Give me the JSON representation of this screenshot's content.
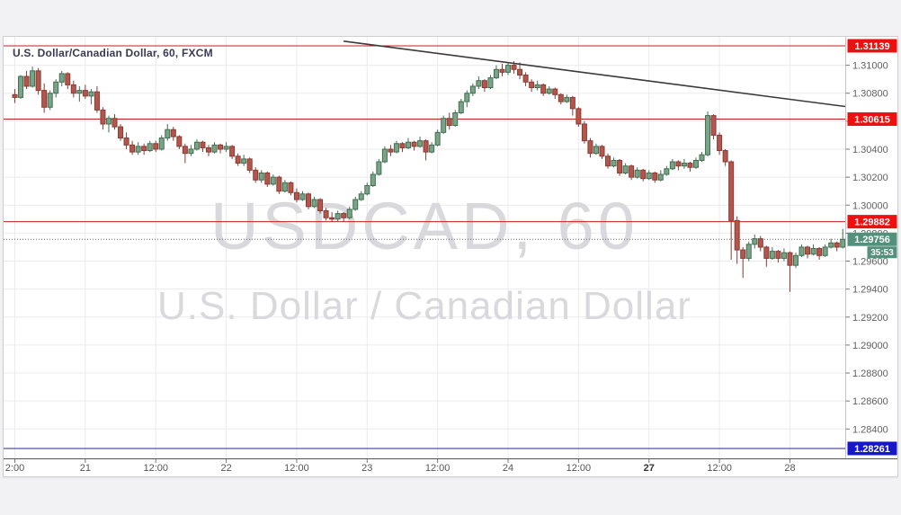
{
  "header": {
    "title": "U.S. Dollar/Canadian Dollar, 60, FXCM"
  },
  "watermark": {
    "line1": "USDCAD, 60",
    "line2": "U.S. Dollar / Canadian Dollar"
  },
  "colors": {
    "up_fill": "#7ba388",
    "up_border": "#3f6e50",
    "down_fill": "#b2564e",
    "down_border": "#8a3a33",
    "grid": "#ebebee",
    "frame_dark": "#555555",
    "frame_light": "#c4c4c4",
    "tick": "#777777",
    "level_red": "#c21f1f",
    "level_blue": "#26268a",
    "badge_red": "#ee0f0f",
    "badge_blue": "#1717c9",
    "badge_green": "#53917c",
    "trendline": "#3a3a3a",
    "last_price_line": "#666666",
    "watermark": "#d9d9dd",
    "title_text": "#3a3a57",
    "axis_text": "#5f5f5f"
  },
  "chart_data": {
    "type": "candlestick",
    "title": "U.S. Dollar/Canadian Dollar, 60, FXCM",
    "symbol": "USDCAD",
    "interval": "60",
    "exchange": "FXCM",
    "y_axis": {
      "min": 1.2819,
      "max": 1.31203,
      "grid_min": 1.284,
      "grid_max": 1.31,
      "grid_step": 0.002,
      "label_decimals": 5,
      "grid": true
    },
    "x_ticks": [
      {
        "index": 0,
        "label": "2:00",
        "bold": false
      },
      {
        "index": 12,
        "label": "21",
        "bold": false
      },
      {
        "index": 24,
        "label": "12:00",
        "bold": false
      },
      {
        "index": 36,
        "label": "22",
        "bold": false
      },
      {
        "index": 48,
        "label": "12:00",
        "bold": false
      },
      {
        "index": 60,
        "label": "23",
        "bold": false
      },
      {
        "index": 72,
        "label": "12:00",
        "bold": false
      },
      {
        "index": 84,
        "label": "24",
        "bold": false
      },
      {
        "index": 96,
        "label": "12:00",
        "bold": false
      },
      {
        "index": 108,
        "label": "27",
        "bold": true
      },
      {
        "index": 120,
        "label": "12:00",
        "bold": false
      },
      {
        "index": 132,
        "label": "28",
        "bold": false
      }
    ],
    "levels": [
      {
        "price": 1.31139,
        "label": "1.31139",
        "style": "red"
      },
      {
        "price": 1.30615,
        "label": "1.30615",
        "style": "red"
      },
      {
        "price": 1.29882,
        "label": "1.29882",
        "style": "red"
      },
      {
        "price": 1.28261,
        "label": "1.28261",
        "style": "blue"
      }
    ],
    "last": {
      "price": 1.29756,
      "label": "1.29756",
      "countdown": "35:53"
    },
    "trendline": {
      "from_index": 56,
      "from_price": 1.31172,
      "to_index": 142,
      "to_price": 1.30705
    },
    "candles": [
      [
        1.3079,
        1.3083,
        1.3073,
        1.3077
      ],
      [
        1.3077,
        1.3093,
        1.3076,
        1.3092
      ],
      [
        1.3092,
        1.3096,
        1.3083,
        1.3085
      ],
      [
        1.3085,
        1.3099,
        1.3084,
        1.3096
      ],
      [
        1.3096,
        1.3098,
        1.3079,
        1.3082
      ],
      [
        1.3082,
        1.3087,
        1.3066,
        1.307
      ],
      [
        1.307,
        1.3082,
        1.3068,
        1.308
      ],
      [
        1.308,
        1.309,
        1.3077,
        1.3088
      ],
      [
        1.3088,
        1.3096,
        1.3085,
        1.3094
      ],
      [
        1.3094,
        1.3095,
        1.3083,
        1.3086
      ],
      [
        1.3086,
        1.3089,
        1.3077,
        1.308
      ],
      [
        1.308,
        1.3085,
        1.3074,
        1.3082
      ],
      [
        1.3082,
        1.3086,
        1.3076,
        1.3078
      ],
      [
        1.3078,
        1.3083,
        1.3072,
        1.3081
      ],
      [
        1.3081,
        1.3085,
        1.3066,
        1.3068
      ],
      [
        1.3068,
        1.307,
        1.3054,
        1.3058
      ],
      [
        1.3058,
        1.3064,
        1.3052,
        1.3062
      ],
      [
        1.3062,
        1.3065,
        1.3054,
        1.3056
      ],
      [
        1.3056,
        1.3058,
        1.3046,
        1.3048
      ],
      [
        1.3048,
        1.3052,
        1.304,
        1.3043
      ],
      [
        1.3043,
        1.3046,
        1.3036,
        1.3038
      ],
      [
        1.3038,
        1.3045,
        1.3036,
        1.3042
      ],
      [
        1.3042,
        1.3044,
        1.3036,
        1.3039
      ],
      [
        1.3039,
        1.3046,
        1.3038,
        1.3044
      ],
      [
        1.3044,
        1.3046,
        1.3038,
        1.304
      ],
      [
        1.304,
        1.305,
        1.3039,
        1.3048
      ],
      [
        1.3048,
        1.3058,
        1.3046,
        1.3054
      ],
      [
        1.3054,
        1.3056,
        1.3046,
        1.3049
      ],
      [
        1.3049,
        1.305,
        1.304,
        1.3042
      ],
      [
        1.3042,
        1.3044,
        1.303,
        1.3037
      ],
      [
        1.3037,
        1.3043,
        1.3035,
        1.304
      ],
      [
        1.304,
        1.3047,
        1.3039,
        1.3045
      ],
      [
        1.3045,
        1.3046,
        1.3038,
        1.3041
      ],
      [
        1.3041,
        1.3043,
        1.3035,
        1.3038
      ],
      [
        1.3038,
        1.3045,
        1.3037,
        1.3043
      ],
      [
        1.3043,
        1.3044,
        1.3037,
        1.304
      ],
      [
        1.304,
        1.3045,
        1.3038,
        1.3042
      ],
      [
        1.3042,
        1.3043,
        1.3033,
        1.3035
      ],
      [
        1.3035,
        1.3037,
        1.3028,
        1.303
      ],
      [
        1.303,
        1.3036,
        1.3028,
        1.3033
      ],
      [
        1.3033,
        1.3034,
        1.3023,
        1.3025
      ],
      [
        1.3025,
        1.3027,
        1.3016,
        1.3018
      ],
      [
        1.3018,
        1.3025,
        1.3016,
        1.3023
      ],
      [
        1.3023,
        1.3024,
        1.3013,
        1.3015
      ],
      [
        1.3015,
        1.3022,
        1.3014,
        1.302
      ],
      [
        1.302,
        1.3021,
        1.3008,
        1.301
      ],
      [
        1.301,
        1.3018,
        1.3009,
        1.3016
      ],
      [
        1.3016,
        1.3017,
        1.3007,
        1.3009
      ],
      [
        1.3009,
        1.3012,
        1.3002,
        1.3004
      ],
      [
        1.3004,
        1.301,
        1.3003,
        1.3008
      ],
      [
        1.3008,
        1.3009,
        1.2997,
        1.2999
      ],
      [
        1.2999,
        1.3006,
        1.2998,
        1.3004
      ],
      [
        1.3004,
        1.3005,
        1.2994,
        1.2996
      ],
      [
        1.2996,
        1.2998,
        1.2989,
        1.2991
      ],
      [
        1.2991,
        1.2995,
        1.2988,
        1.299
      ],
      [
        1.299,
        1.2996,
        1.2988,
        1.2994
      ],
      [
        1.2994,
        1.2995,
        1.2988,
        1.2991
      ],
      [
        1.2991,
        1.2999,
        1.299,
        1.2997
      ],
      [
        1.2997,
        1.3006,
        1.2996,
        1.3004
      ],
      [
        1.3004,
        1.301,
        1.3003,
        1.3008
      ],
      [
        1.3008,
        1.3016,
        1.3007,
        1.3014
      ],
      [
        1.3014,
        1.3024,
        1.3013,
        1.3022
      ],
      [
        1.3022,
        1.3033,
        1.3021,
        1.3031
      ],
      [
        1.3031,
        1.3042,
        1.303,
        1.304
      ],
      [
        1.304,
        1.3043,
        1.3035,
        1.3038
      ],
      [
        1.3038,
        1.3046,
        1.3037,
        1.3044
      ],
      [
        1.3044,
        1.3045,
        1.3038,
        1.3041
      ],
      [
        1.3041,
        1.3048,
        1.304,
        1.3045
      ],
      [
        1.3045,
        1.3046,
        1.3039,
        1.3042
      ],
      [
        1.3042,
        1.3049,
        1.3041,
        1.3046
      ],
      [
        1.3046,
        1.3047,
        1.3032,
        1.3038
      ],
      [
        1.3038,
        1.3045,
        1.3037,
        1.3043
      ],
      [
        1.3043,
        1.3054,
        1.3042,
        1.3052
      ],
      [
        1.3052,
        1.3064,
        1.3051,
        1.3062
      ],
      [
        1.3062,
        1.3066,
        1.3054,
        1.3057
      ],
      [
        1.3057,
        1.3068,
        1.3056,
        1.3066
      ],
      [
        1.3066,
        1.3076,
        1.3065,
        1.3074
      ],
      [
        1.3074,
        1.3082,
        1.307,
        1.308
      ],
      [
        1.308,
        1.3087,
        1.3078,
        1.3085
      ],
      [
        1.3085,
        1.3092,
        1.3083,
        1.3089
      ],
      [
        1.3089,
        1.309,
        1.3081,
        1.3084
      ],
      [
        1.3084,
        1.3093,
        1.3083,
        1.3091
      ],
      [
        1.3091,
        1.31,
        1.309,
        1.3097
      ],
      [
        1.3097,
        1.3101,
        1.3092,
        1.3095
      ],
      [
        1.3095,
        1.3102,
        1.3093,
        1.31
      ],
      [
        1.31,
        1.3103,
        1.3094,
        1.3097
      ],
      [
        1.3097,
        1.3102,
        1.309,
        1.3093
      ],
      [
        1.3093,
        1.3095,
        1.3085,
        1.3088
      ],
      [
        1.3088,
        1.309,
        1.3081,
        1.3084
      ],
      [
        1.3084,
        1.3089,
        1.3082,
        1.3086
      ],
      [
        1.3086,
        1.3087,
        1.3078,
        1.308
      ],
      [
        1.308,
        1.3085,
        1.3079,
        1.3083
      ],
      [
        1.3083,
        1.3084,
        1.3076,
        1.3079
      ],
      [
        1.3079,
        1.308,
        1.3072,
        1.3074
      ],
      [
        1.3074,
        1.3079,
        1.3073,
        1.3077
      ],
      [
        1.3077,
        1.3078,
        1.3064,
        1.3069
      ],
      [
        1.3069,
        1.307,
        1.3056,
        1.3058
      ],
      [
        1.3058,
        1.306,
        1.3044,
        1.3046
      ],
      [
        1.3046,
        1.3048,
        1.3034,
        1.3037
      ],
      [
        1.3037,
        1.3044,
        1.3036,
        1.3042
      ],
      [
        1.3042,
        1.3043,
        1.3033,
        1.3035
      ],
      [
        1.3035,
        1.3037,
        1.3026,
        1.3028
      ],
      [
        1.3028,
        1.3034,
        1.3027,
        1.3032
      ],
      [
        1.3032,
        1.3033,
        1.3021,
        1.3023
      ],
      [
        1.3023,
        1.303,
        1.3022,
        1.3028
      ],
      [
        1.3028,
        1.3029,
        1.3018,
        1.302
      ],
      [
        1.302,
        1.3027,
        1.3019,
        1.3025
      ],
      [
        1.3025,
        1.3026,
        1.3017,
        1.3019
      ],
      [
        1.3019,
        1.3025,
        1.3018,
        1.3023
      ],
      [
        1.3023,
        1.3024,
        1.3016,
        1.3018
      ],
      [
        1.3018,
        1.3025,
        1.3017,
        1.3022
      ],
      [
        1.3022,
        1.3028,
        1.3021,
        1.3026
      ],
      [
        1.3026,
        1.3033,
        1.3025,
        1.3031
      ],
      [
        1.3031,
        1.3032,
        1.3025,
        1.3028
      ],
      [
        1.3028,
        1.3033,
        1.3026,
        1.303
      ],
      [
        1.303,
        1.3031,
        1.3024,
        1.3027
      ],
      [
        1.3027,
        1.3034,
        1.3026,
        1.3032
      ],
      [
        1.3032,
        1.3038,
        1.3031,
        1.3036
      ],
      [
        1.3036,
        1.3067,
        1.3035,
        1.3064
      ],
      [
        1.3064,
        1.3065,
        1.3047,
        1.305
      ],
      [
        1.305,
        1.3052,
        1.3036,
        1.3039
      ],
      [
        1.3039,
        1.304,
        1.3028,
        1.3031
      ],
      [
        1.3031,
        1.3032,
        1.2961,
        1.2989
      ],
      [
        1.2989,
        1.2992,
        1.2958,
        1.2968
      ],
      [
        1.2968,
        1.297,
        1.2948,
        1.2962
      ],
      [
        1.2962,
        1.2974,
        1.296,
        1.2972
      ],
      [
        1.2972,
        1.2979,
        1.2969,
        1.2976
      ],
      [
        1.2976,
        1.2978,
        1.2967,
        1.297
      ],
      [
        1.297,
        1.2971,
        1.2956,
        1.2962
      ],
      [
        1.2962,
        1.297,
        1.2961,
        1.2967
      ],
      [
        1.2967,
        1.2968,
        1.2959,
        1.2962
      ],
      [
        1.2962,
        1.2969,
        1.296,
        1.2966
      ],
      [
        1.2966,
        1.2967,
        1.2938,
        1.2957
      ],
      [
        1.2957,
        1.2966,
        1.2955,
        1.2964
      ],
      [
        1.2964,
        1.2972,
        1.2963,
        1.297
      ],
      [
        1.297,
        1.2971,
        1.2962,
        1.2965
      ],
      [
        1.2965,
        1.2972,
        1.2964,
        1.2969
      ],
      [
        1.2969,
        1.297,
        1.2961,
        1.2964
      ],
      [
        1.2964,
        1.2972,
        1.2963,
        1.297
      ],
      [
        1.297,
        1.2976,
        1.2969,
        1.2973
      ],
      [
        1.2973,
        1.2974,
        1.2967,
        1.297
      ],
      [
        1.297,
        1.2983,
        1.2969,
        1.29756
      ]
    ]
  }
}
